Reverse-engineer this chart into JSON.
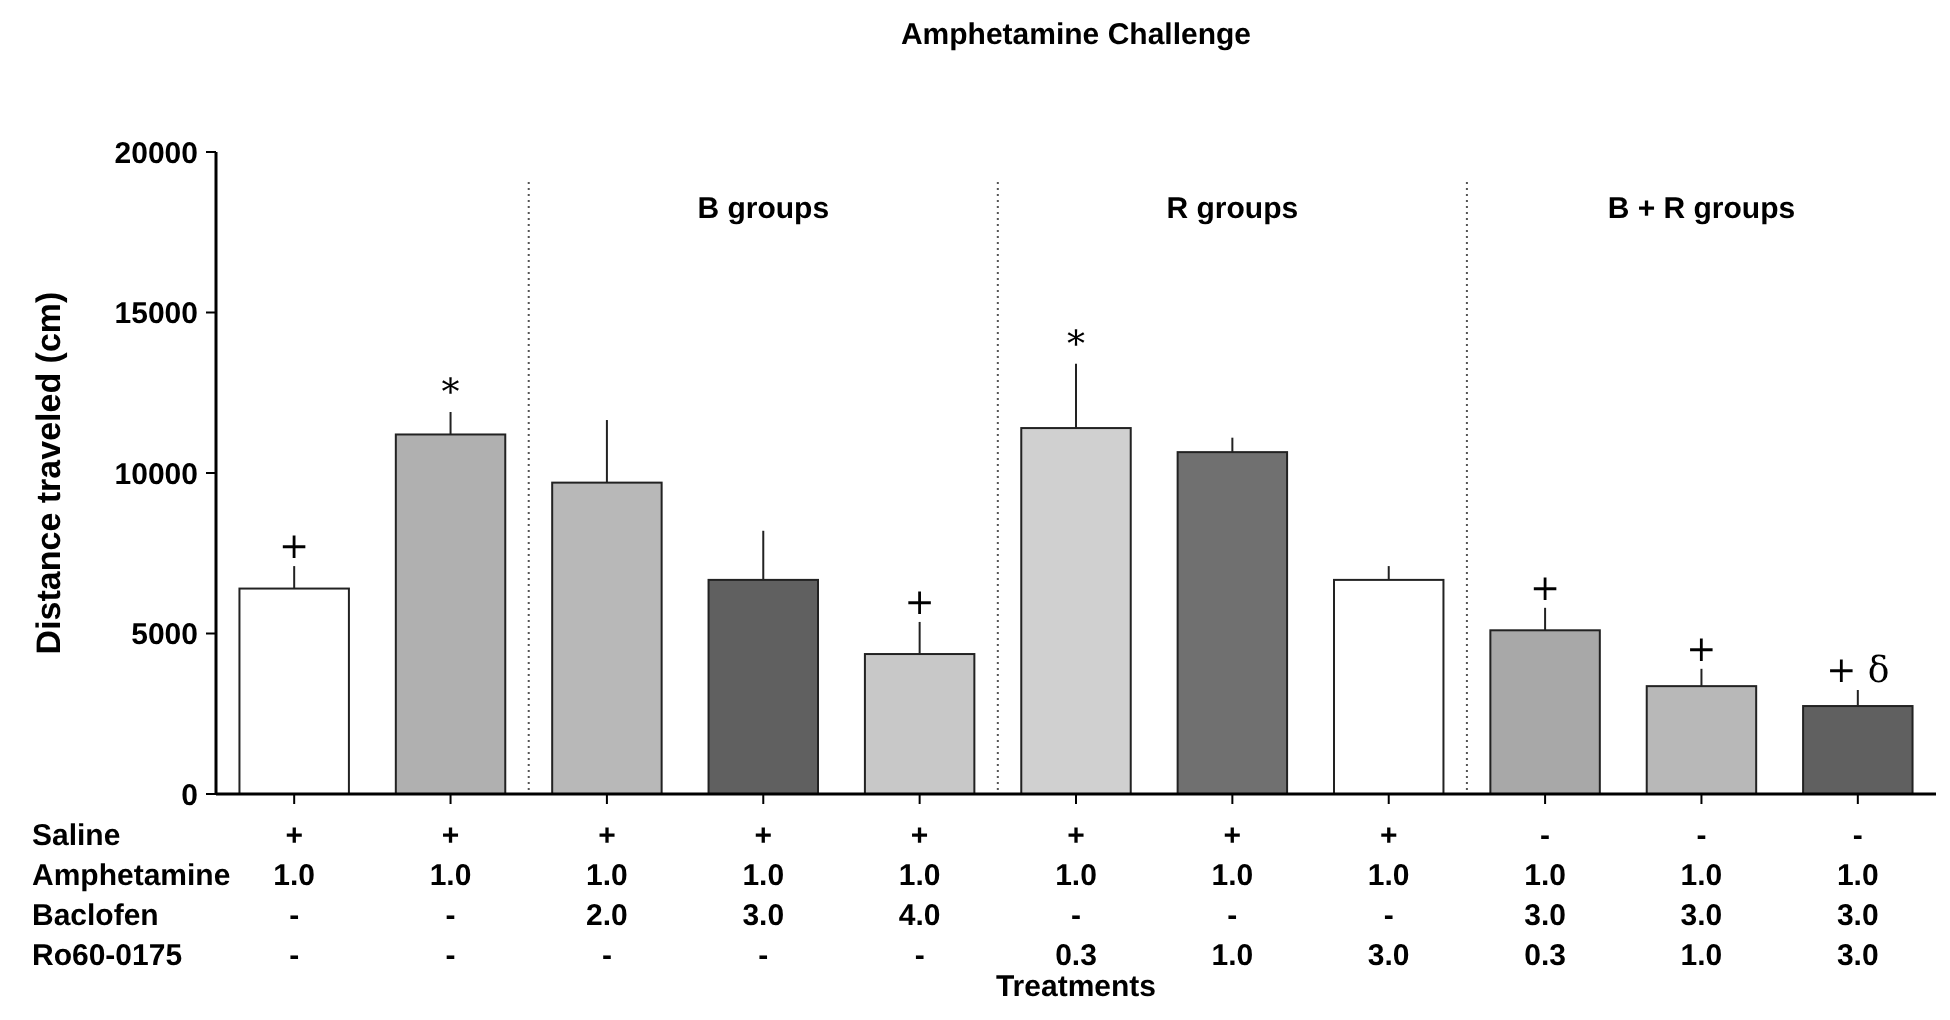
{
  "chart_data": {
    "type": "bar",
    "title": "Amphetamine Challenge",
    "xlabel": "Treatments",
    "ylabel": "Distance traveled (cm)",
    "categories": [
      "+\n1.0\n-\n-",
      "+\n1.0\n-\n-",
      "+\n1.0\n2.0\n-",
      "+\n1.0\n3.0\n-",
      "+\n1.0\n4.0\n-",
      "+\n1.0\n-\n0.3",
      "+\n1.0\n-\n1.0",
      "+\n1.0\n-\n3.0",
      "-\n1.0\n3.0\n0.3",
      "-\n1.0\n3.0\n1.0",
      "-\n1.0\n3.0\n3.0"
    ],
    "values": [
      6400,
      11200,
      9700,
      6670,
      4360,
      11400,
      10650,
      6670,
      5100,
      3360,
      2740
    ],
    "errors": [
      [
        6400,
        7100
      ],
      [
        11200,
        11900
      ],
      [
        9700,
        11650
      ],
      [
        6670,
        8200
      ],
      [
        4360,
        5360
      ],
      [
        11400,
        13400
      ],
      [
        10650,
        11100
      ],
      [
        6670,
        7100
      ],
      [
        5100,
        5800
      ],
      [
        3360,
        3900
      ],
      [
        2740,
        3240
      ]
    ],
    "colors": [
      "#ffffff",
      "#b0b0b0",
      "#b8b8b8",
      "#606060",
      "#c8c8c8",
      "#d0d0d0",
      "#707070",
      "#ffffff",
      "#a8a8a8",
      "#b8b8b8",
      "#606060"
    ],
    "value_labels": [
      "+",
      "*",
      null,
      null,
      "+",
      "*",
      null,
      null,
      "+",
      "+",
      "+ δ"
    ],
    "ylim": [
      0,
      20000
    ],
    "yticks": [
      0,
      5000,
      10000,
      15000,
      20000
    ],
    "grid": false,
    "annotations": [
      "Saline",
      "Amphetamine",
      "Baclofen",
      "Ro60-0175",
      "B groups",
      "R groups",
      "B + R groups"
    ]
  }
}
